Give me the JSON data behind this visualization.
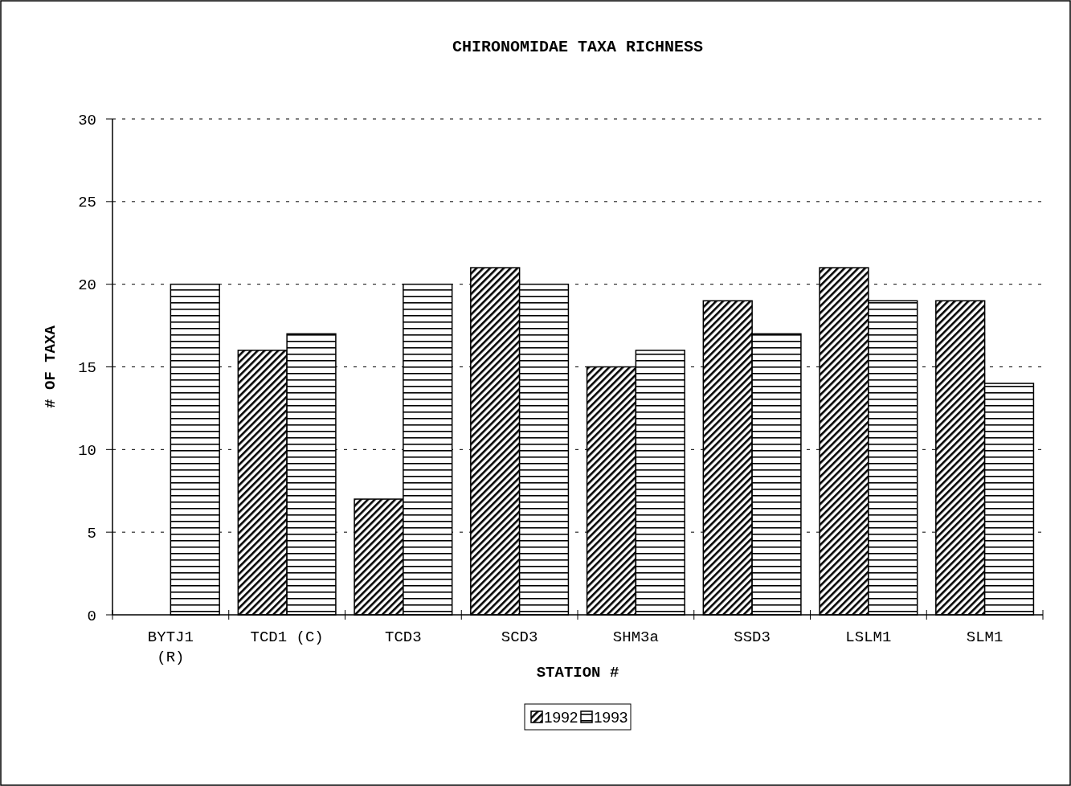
{
  "chart_data": {
    "type": "bar",
    "title": "CHIRONOMIDAE TAXA RICHNESS",
    "xlabel": "STATION #",
    "ylabel": "# OF TAXA",
    "categories": [
      "BYTJ1 (R)",
      "TCD1 (C)",
      "TCD3",
      "SCD3",
      "SHM3a",
      "SSD3",
      "LSLM1",
      "SLM1"
    ],
    "series": [
      {
        "name": "1992",
        "color": "#000000",
        "values": [
          null,
          16,
          7,
          21,
          15,
          19,
          21,
          19
        ]
      },
      {
        "name": "1993",
        "color": "#000000",
        "values": [
          20,
          17,
          20,
          20,
          16,
          17,
          19,
          14
        ]
      }
    ],
    "ylim": [
      0,
      30
    ],
    "yticks": [
      0,
      5,
      10,
      15,
      20,
      25,
      30
    ],
    "grid": "y",
    "legend": "bottom"
  }
}
